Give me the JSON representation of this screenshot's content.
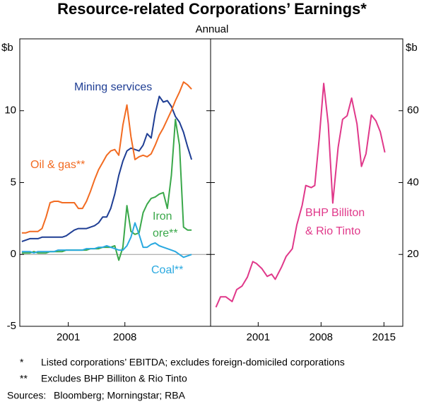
{
  "title": "Resource-related Corporations’ Earnings*",
  "subtitle": "Annual",
  "chart_data": [
    {
      "type": "line",
      "y_label": "$b",
      "x": [
        1995.25,
        1995.75,
        1996.25,
        1996.75,
        1997.25,
        1997.75,
        1998.25,
        1998.75,
        1999.25,
        1999.75,
        2000.25,
        2000.75,
        2001.25,
        2001.75,
        2002.25,
        2002.75,
        2003.25,
        2003.75,
        2004.25,
        2004.75,
        2005.25,
        2005.75,
        2006.25,
        2006.75,
        2007.25,
        2007.75,
        2008.25,
        2008.75,
        2009.25,
        2009.75,
        2010.25,
        2010.75,
        2011.25,
        2011.75,
        2012.25,
        2012.75,
        2013.25,
        2013.75,
        2014.25,
        2014.75,
        2015.25,
        2015.75,
        2016.25
      ],
      "xlim": [
        1995,
        2018.6
      ],
      "xticks": [
        2001,
        2008
      ],
      "ylim": [
        -5,
        15
      ],
      "yticks": [
        -5,
        0,
        5,
        10
      ],
      "series": [
        {
          "name": "Mining services",
          "color": "#1f3e94",
          "values": [
            0.9,
            1.0,
            1.1,
            1.1,
            1.1,
            1.2,
            1.2,
            1.2,
            1.2,
            1.2,
            1.2,
            1.3,
            1.5,
            1.7,
            1.8,
            1.8,
            1.8,
            1.9,
            2.0,
            2.2,
            2.6,
            2.6,
            3.2,
            4.2,
            5.5,
            6.5,
            7.2,
            7.4,
            7.3,
            7.2,
            7.6,
            8.4,
            8.1,
            9.8,
            11.0,
            10.6,
            10.7,
            10.3,
            9.6,
            9.2,
            8.5,
            7.5,
            6.6
          ]
        },
        {
          "name": "Oil & gas**",
          "color": "#f26b21",
          "values": [
            1.5,
            1.5,
            1.6,
            1.6,
            1.6,
            1.8,
            2.6,
            3.6,
            3.7,
            3.7,
            3.6,
            3.6,
            3.6,
            3.6,
            3.2,
            3.2,
            3.7,
            4.4,
            5.2,
            5.9,
            6.4,
            6.9,
            7.2,
            7.3,
            6.9,
            9.0,
            10.4,
            8.2,
            6.6,
            6.8,
            6.9,
            6.8,
            7.0,
            7.6,
            8.3,
            8.8,
            9.4,
            10.0,
            10.7,
            11.3,
            12.0,
            11.8,
            11.5
          ]
        },
        {
          "name": "Iron ore**",
          "color": "#3aa84a",
          "values": [
            0.1,
            0.1,
            0.1,
            0.2,
            0.1,
            0.1,
            0.1,
            0.2,
            0.2,
            0.2,
            0.2,
            0.3,
            0.3,
            0.3,
            0.3,
            0.3,
            0.3,
            0.4,
            0.4,
            0.4,
            0.5,
            0.5,
            0.5,
            0.6,
            -0.4,
            0.5,
            3.4,
            1.6,
            1.4,
            1.5,
            2.9,
            3.5,
            3.9,
            4.0,
            4.2,
            4.3,
            3.2,
            5.5,
            9.4,
            7.6,
            1.9,
            1.7,
            1.7
          ]
        },
        {
          "name": "Coal**",
          "color": "#2aa9e0",
          "values": [
            0.2,
            0.2,
            0.2,
            0.1,
            0.2,
            0.2,
            0.2,
            0.2,
            0.2,
            0.3,
            0.3,
            0.3,
            0.3,
            0.3,
            0.3,
            0.3,
            0.4,
            0.4,
            0.4,
            0.5,
            0.5,
            0.6,
            0.5,
            0.4,
            0.3,
            0.3,
            0.6,
            1.2,
            2.2,
            1.4,
            0.5,
            0.5,
            0.7,
            0.8,
            0.6,
            0.5,
            0.4,
            0.3,
            0.2,
            0.0,
            -0.2,
            -0.1,
            0.0
          ]
        }
      ]
    },
    {
      "type": "line",
      "y_label": "$b",
      "x": [
        1996.3,
        1996.8,
        1997.4,
        1998.1,
        1998.6,
        1999.2,
        1999.8,
        2000.4,
        2000.8,
        2001.4,
        2002.0,
        2002.5,
        2002.9,
        2003.6,
        2004.1,
        2004.8,
        2005.3,
        2005.9,
        2006.3,
        2006.9,
        2007.3,
        2007.8,
        2008.3,
        2008.8,
        2009.3,
        2009.9,
        2010.4,
        2010.9,
        2011.4,
        2012.0,
        2012.5,
        2013.0,
        2013.6,
        2014.1,
        2014.6,
        2015.1
      ],
      "xlim": [
        1995.7,
        2017.1
      ],
      "xticks": [
        2001,
        2008,
        2015
      ],
      "ylim": [
        0,
        80
      ],
      "yticks": [
        20,
        40,
        60
      ],
      "series": [
        {
          "name": "BHP Billiton & Rio Tinto",
          "color": "#e0388a",
          "values": [
            5.3,
            8.2,
            8.2,
            6.9,
            10.2,
            11.2,
            13.7,
            18.0,
            17.5,
            16.1,
            13.9,
            14.5,
            13.1,
            16.5,
            19.4,
            21.6,
            28.2,
            33.7,
            39.2,
            38.6,
            39.2,
            52.4,
            67.6,
            56.3,
            34.3,
            49.8,
            57.6,
            58.6,
            63.5,
            56.3,
            44.5,
            48.0,
            58.8,
            57.2,
            54.1,
            48.4
          ]
        }
      ]
    }
  ],
  "notes": [
    {
      "marker": "*",
      "text": "Listed corporations’ EBITDA; excludes foreign-domiciled corporations"
    },
    {
      "marker": "**",
      "text": "Excludes BHP Billiton & Rio Tinto"
    }
  ],
  "sources": {
    "label": "Sources:",
    "text": "Bloomberg; Morningstar; RBA"
  }
}
